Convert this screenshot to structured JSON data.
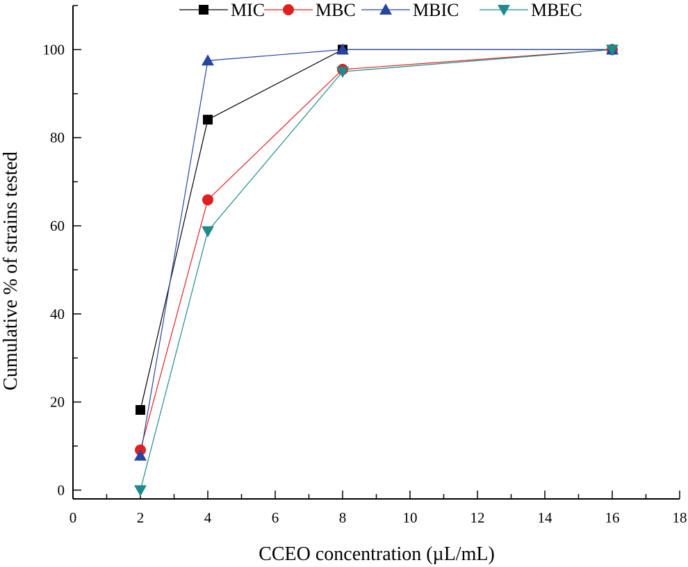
{
  "chart_data": {
    "type": "line",
    "title": "",
    "xlabel": "CCEO concentration (µL/mL)",
    "ylabel": "Cumulative % of strains tested",
    "xlim": [
      0,
      18
    ],
    "ylim": [
      -2,
      110
    ],
    "xticks": [
      0,
      2,
      4,
      6,
      8,
      10,
      12,
      14,
      16,
      18
    ],
    "yticks": [
      0,
      20,
      40,
      60,
      80,
      100
    ],
    "legend_position": "top",
    "series": [
      {
        "name": "MIC",
        "color": "#000000",
        "marker": "square",
        "x": [
          2,
          4,
          8,
          16
        ],
        "y": [
          18.2,
          84.1,
          100,
          100
        ]
      },
      {
        "name": "MBC",
        "color": "#e02020",
        "marker": "circle",
        "x": [
          2,
          4,
          8,
          16
        ],
        "y": [
          9.1,
          65.9,
          95.5,
          100
        ]
      },
      {
        "name": "MBIC",
        "color": "#2545a0",
        "marker": "triangle-up",
        "x": [
          2,
          4,
          8,
          16
        ],
        "y": [
          7.8,
          97.5,
          100,
          100
        ]
      },
      {
        "name": "MBEC",
        "color": "#1f8a8a",
        "marker": "triangle-down",
        "x": [
          2,
          4,
          8,
          16
        ],
        "y": [
          0,
          58.8,
          95,
          100
        ]
      }
    ]
  }
}
